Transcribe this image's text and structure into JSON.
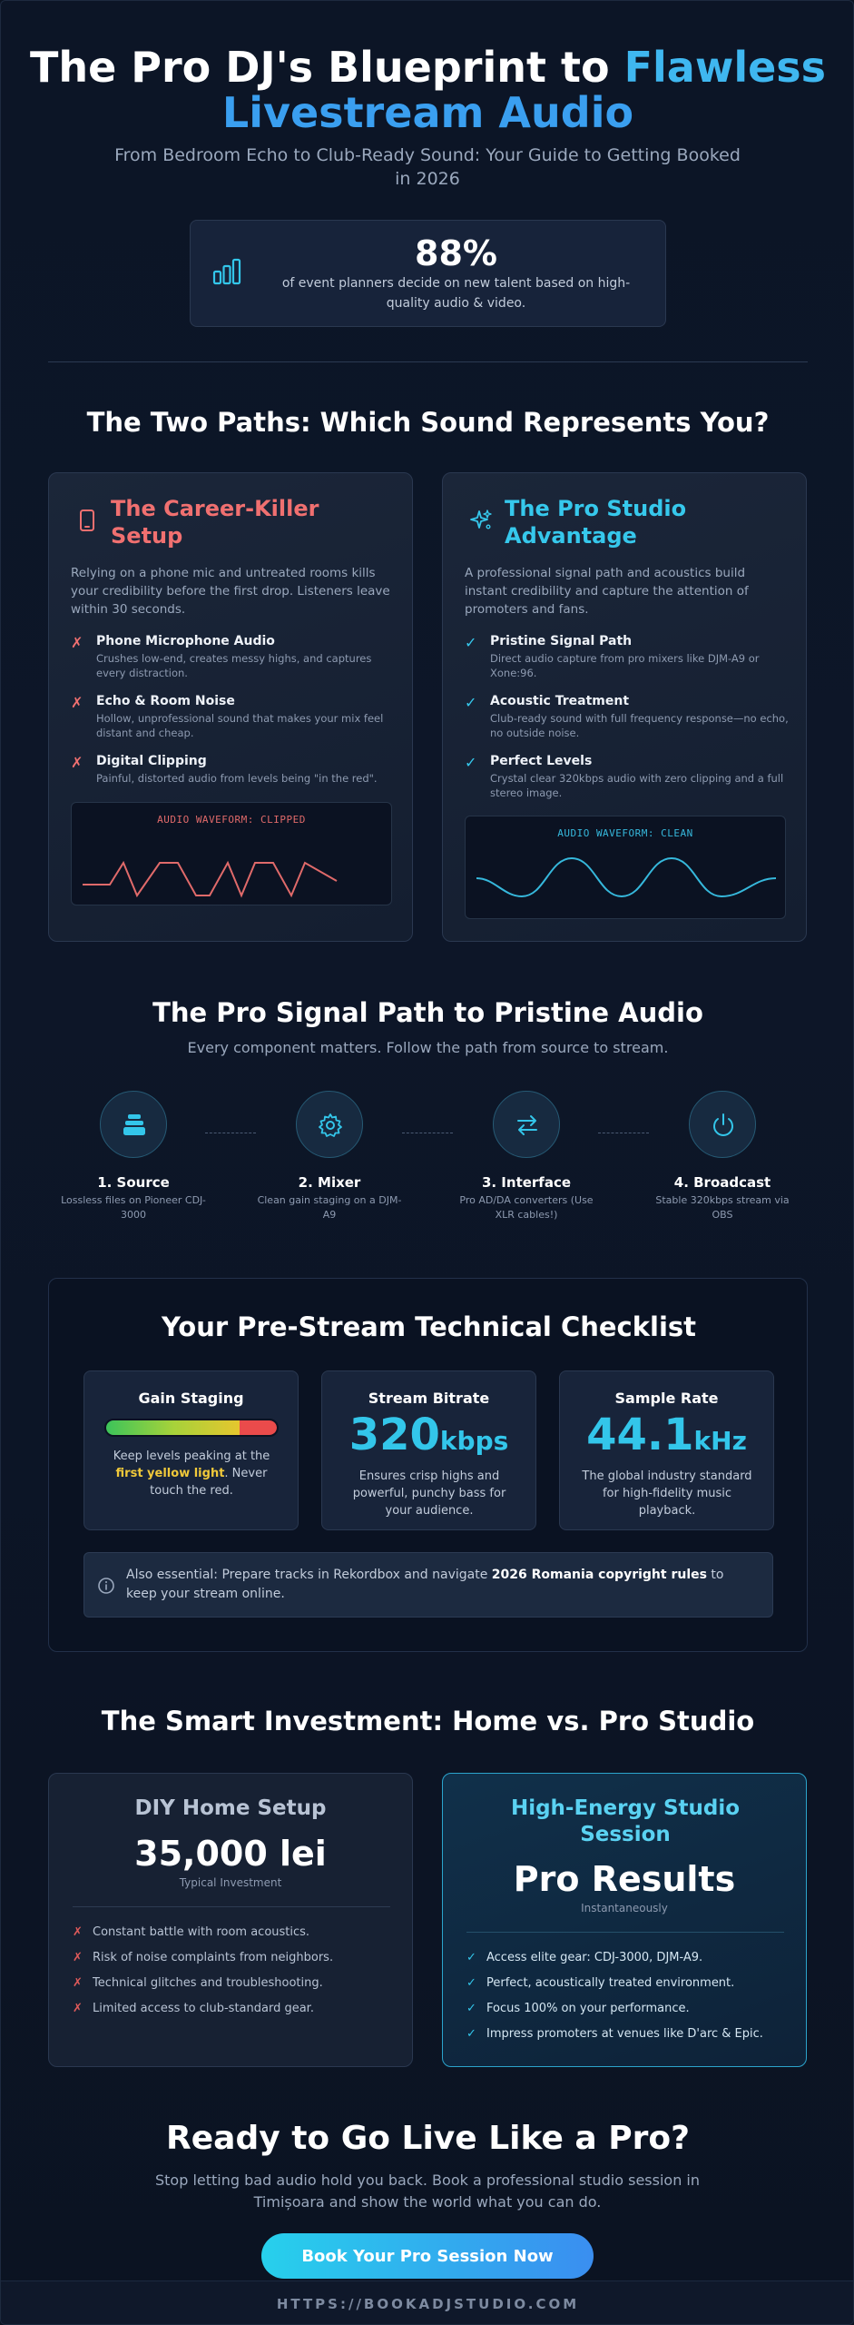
{
  "hero": {
    "title_line1_white": "The Pro DJ's Blueprint to ",
    "title_line1_accent": "Flawless",
    "title_line2_accent": "Livestream Audio",
    "subtitle": "From Bedroom Echo to Club-Ready Sound: Your Guide to Getting Booked in 2026",
    "stat": {
      "value": "88%",
      "text": "of event planners decide on new talent based on high-quality audio & video.",
      "icon": "bar-chart-icon"
    }
  },
  "paths": {
    "title": "The Two Paths: Which Sound Represents You?",
    "bad": {
      "icon": "smartphone-icon",
      "title": "The Career-Killer Setup",
      "intro": "Relying on a phone mic and untreated rooms kills your credibility before the first drop. Listeners leave within 30 seconds.",
      "items": [
        {
          "name": "Phone Microphone Audio",
          "desc": "Crushes low-end, creates messy highs, and captures every distraction."
        },
        {
          "name": "Echo & Room Noise",
          "desc": "Hollow, unprofessional sound that makes your mix feel distant and cheap."
        },
        {
          "name": "Digital Clipping",
          "desc": "Painful, distorted audio from levels being \"in the red\"."
        }
      ],
      "mark": "✗",
      "wave_label": "AUDIO WAVEFORM: CLIPPED"
    },
    "good": {
      "icon": "sparkles-icon",
      "title": "The Pro Studio Advantage",
      "intro": "A professional signal path and acoustics build instant credibility and capture the attention of promoters and fans.",
      "items": [
        {
          "name": "Pristine Signal Path",
          "desc": "Direct audio capture from pro mixers like DJM-A9 or Xone:96."
        },
        {
          "name": "Acoustic Treatment",
          "desc": "Club-ready sound with full frequency response—no echo, no outside noise."
        },
        {
          "name": "Perfect Levels",
          "desc": "Crystal clear 320kbps audio with zero clipping and a full stereo image."
        }
      ],
      "mark": "✓",
      "wave_label": "AUDIO WAVEFORM: CLEAN"
    }
  },
  "signal": {
    "title": "The Pro Signal Path to Pristine Audio",
    "subtitle": "Every component matters. Follow the path from source to stream.",
    "steps": [
      {
        "name": "1. Source",
        "desc": "Lossless files on Pioneer CDJ-3000",
        "icon": "layers-icon"
      },
      {
        "name": "2. Mixer",
        "desc": "Clean gain staging on a DJM-A9",
        "icon": "gear-icon"
      },
      {
        "name": "3. Interface",
        "desc": "Pro AD/DA converters (Use XLR cables!)",
        "icon": "swap-arrows-icon"
      },
      {
        "name": "4. Broadcast",
        "desc": "Stable 320kbps stream via OBS",
        "icon": "power-icon"
      }
    ]
  },
  "checklist": {
    "title": "Your Pre-Stream Technical Checklist",
    "gain": {
      "title": "Gain Staging",
      "desc_before": "Keep levels peaking at the ",
      "desc_highlight": "first yellow light",
      "desc_after": ". Never touch the red.",
      "level_fraction": 0.78
    },
    "bitrate": {
      "title": "Stream Bitrate",
      "value": "320",
      "unit": "kbps",
      "desc": "Ensures crisp highs and powerful, punchy bass for your audience."
    },
    "sample": {
      "title": "Sample Rate",
      "value": "44.1",
      "unit": "kHz",
      "desc": "The global industry standard for high-fidelity music playback."
    },
    "note": {
      "icon": "info-icon",
      "before": "Also essential: Prepare tracks in Rekordbox and navigate ",
      "bold": "2026 Romania copyright rules",
      "after": " to keep your stream online."
    }
  },
  "investment": {
    "title": "The Smart Investment: Home vs. Pro Studio",
    "diy": {
      "title": "DIY Home Setup",
      "price": "35,000 lei",
      "caption": "Typical Investment",
      "mark": "✗",
      "items": [
        "Constant battle with room acoustics.",
        "Risk of noise complaints from neighbors.",
        "Technical glitches and troubleshooting.",
        "Limited access to club-standard gear."
      ]
    },
    "pro": {
      "title": "High-Energy Studio Session",
      "price": "Pro Results",
      "caption": "Instantaneously",
      "mark": "✓",
      "items": [
        "Access elite gear: CDJ-3000, DJM-A9.",
        "Perfect, acoustically treated environment.",
        "Focus 100% on your performance.",
        "Impress promoters at venues like D'arc & Epic."
      ]
    }
  },
  "cta": {
    "title": "Ready to Go Live Like a Pro?",
    "subtitle": "Stop letting bad audio hold you back. Book a professional studio session in Timișoara and show the world what you can do.",
    "button": "Book Your Pro Session Now"
  },
  "footer": {
    "url": "HTTPS://BOOKADJSTUDIO.COM"
  }
}
